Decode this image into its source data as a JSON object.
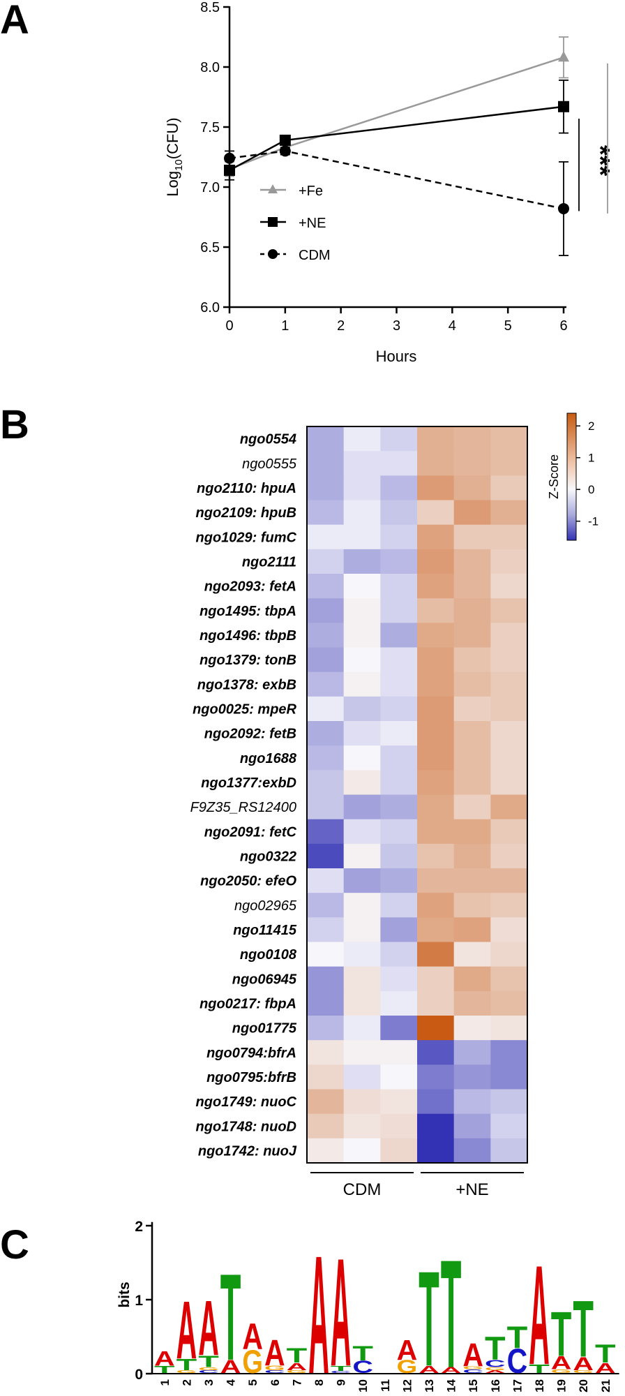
{
  "panels": {
    "a": "A",
    "b": "B",
    "c": "C"
  },
  "chart_data": [
    {
      "type": "line",
      "panel": "A",
      "xlabel": "Hours",
      "ylabel_main": "Log",
      "ylabel_sub": "10",
      "ylabel_tail": "(CFU)",
      "xlim": [
        0,
        6
      ],
      "ylim": [
        6.0,
        8.5
      ],
      "xticks": [
        "0",
        "1",
        "2",
        "3",
        "4",
        "5",
        "6"
      ],
      "yticks": [
        "6.0",
        "6.5",
        "7.0",
        "7.5",
        "8.0",
        "8.5"
      ],
      "legend_position": "inside-lower-left",
      "series": [
        {
          "name": "+Fe",
          "color": "#999999",
          "marker": "triangle",
          "dash": "solid",
          "x": [
            0,
            1,
            6
          ],
          "y": [
            7.15,
            7.33,
            8.08
          ],
          "err": [
            0.06,
            0.04,
            0.17
          ]
        },
        {
          "name": "+NE",
          "color": "#000000",
          "marker": "square",
          "dash": "solid",
          "x": [
            0,
            1,
            6
          ],
          "y": [
            7.14,
            7.39,
            7.67
          ],
          "err": [
            0.08,
            0.03,
            0.22
          ]
        },
        {
          "name": "CDM",
          "color": "#000000",
          "marker": "circle",
          "dash": "dashed",
          "x": [
            0,
            1,
            6
          ],
          "y": [
            7.24,
            7.3,
            6.82
          ],
          "err": [
            0.06,
            0.03,
            0.39
          ]
        }
      ],
      "annotations": [
        {
          "text": "***",
          "color": "#000000",
          "from": "+NE",
          "to": "CDM"
        },
        {
          "text": "****",
          "color": "#999999",
          "from": "+Fe",
          "to": "CDM"
        }
      ]
    },
    {
      "type": "heatmap",
      "panel": "B",
      "colorbar_label": "Z-Score",
      "colorbar_ticks": [
        "2",
        "1",
        "0",
        "-1"
      ],
      "colorbar_range": [
        -1.6,
        2.4
      ],
      "groups": [
        {
          "label": "CDM",
          "columns": 3
        },
        {
          "label": "+NE",
          "columns": 3
        }
      ],
      "rows": [
        {
          "gene": "ngo0554",
          "bold": true,
          "values": [
            -0.6,
            -0.1,
            -0.3,
            1.1,
            1.0,
            0.9
          ]
        },
        {
          "gene": "ngo0555",
          "bold": false,
          "values": [
            -0.6,
            -0.2,
            -0.2,
            1.1,
            1.0,
            0.9
          ]
        },
        {
          "gene": "ngo2110: hpuA",
          "bold": true,
          "values": [
            -0.6,
            -0.2,
            -0.5,
            1.4,
            1.1,
            0.7
          ]
        },
        {
          "gene": "ngo2109: hpuB",
          "bold": true,
          "values": [
            -0.5,
            -0.1,
            -0.4,
            0.6,
            1.4,
            1.1
          ]
        },
        {
          "gene": "ngo1029: fumC",
          "bold": true,
          "values": [
            -0.1,
            -0.1,
            -0.3,
            1.3,
            0.7,
            0.7
          ]
        },
        {
          "gene": "ngo2111",
          "bold": true,
          "values": [
            -0.3,
            -0.6,
            -0.5,
            1.4,
            1.0,
            0.6
          ]
        },
        {
          "gene": "ngo2093: fetA",
          "bold": true,
          "values": [
            -0.5,
            0.0,
            -0.3,
            1.3,
            1.0,
            0.5
          ]
        },
        {
          "gene": "ngo1495: tbpA",
          "bold": true,
          "values": [
            -0.7,
            0.1,
            -0.3,
            0.9,
            1.1,
            0.8
          ]
        },
        {
          "gene": "ngo1496: tbpB",
          "bold": true,
          "values": [
            -0.6,
            0.1,
            -0.6,
            1.2,
            1.1,
            0.6
          ]
        },
        {
          "gene": "ngo1379: tonB",
          "bold": true,
          "values": [
            -0.7,
            0.0,
            -0.2,
            1.3,
            0.8,
            0.6
          ]
        },
        {
          "gene": "ngo1378: exbB",
          "bold": true,
          "values": [
            -0.5,
            0.1,
            -0.2,
            1.3,
            0.9,
            0.7
          ]
        },
        {
          "gene": "ngo0025: mpeR",
          "bold": true,
          "values": [
            -0.1,
            -0.4,
            -0.3,
            1.4,
            0.6,
            0.7
          ]
        },
        {
          "gene": "ngo2092: fetB",
          "bold": true,
          "values": [
            -0.6,
            -0.2,
            -0.1,
            1.4,
            0.9,
            0.5
          ]
        },
        {
          "gene": "ngo1688",
          "bold": true,
          "values": [
            -0.5,
            0.0,
            -0.3,
            1.4,
            0.9,
            0.5
          ]
        },
        {
          "gene": "ngo1377:exbD",
          "bold": true,
          "values": [
            -0.4,
            0.2,
            -0.3,
            1.3,
            0.9,
            0.5
          ]
        },
        {
          "gene": "F9Z35_RS12400",
          "bold": false,
          "values": [
            -0.4,
            -0.7,
            -0.6,
            1.2,
            0.6,
            1.2
          ]
        },
        {
          "gene": "ngo2091: fetC",
          "bold": true,
          "values": [
            -1.2,
            -0.2,
            -0.3,
            1.2,
            1.2,
            0.7
          ]
        },
        {
          "gene": "ngo0322",
          "bold": true,
          "values": [
            -1.4,
            0.1,
            -0.4,
            0.8,
            1.1,
            0.6
          ]
        },
        {
          "gene": "ngo2050: efeO",
          "bold": true,
          "values": [
            -0.2,
            -0.7,
            -0.6,
            1.0,
            1.0,
            1.0
          ]
        },
        {
          "gene": "ngo02965",
          "bold": false,
          "values": [
            -0.5,
            0.1,
            -0.3,
            1.3,
            0.8,
            0.7
          ]
        },
        {
          "gene": "ngo11415",
          "bold": true,
          "values": [
            -0.3,
            0.1,
            -0.7,
            1.2,
            1.3,
            0.4
          ]
        },
        {
          "gene": "ngo0108",
          "bold": true,
          "values": [
            0.0,
            -0.1,
            -0.3,
            1.9,
            0.3,
            0.5
          ]
        },
        {
          "gene": "ngo06945",
          "bold": true,
          "values": [
            -0.8,
            0.3,
            -0.2,
            0.6,
            1.2,
            0.8
          ]
        },
        {
          "gene": "ngo0217: fbpA",
          "bold": true,
          "values": [
            -0.8,
            0.3,
            -0.1,
            0.6,
            1.0,
            0.9
          ]
        },
        {
          "gene": "ngo01775",
          "bold": true,
          "values": [
            -0.5,
            -0.1,
            -1.0,
            2.4,
            0.2,
            0.3
          ]
        },
        {
          "gene": "ngo0794:bfrA",
          "bold": true,
          "values": [
            0.3,
            0.1,
            0.1,
            -1.3,
            -0.6,
            -0.9
          ]
        },
        {
          "gene": "ngo0795:bfrB",
          "bold": true,
          "values": [
            0.5,
            -0.2,
            0.0,
            -1.0,
            -0.8,
            -0.9
          ]
        },
        {
          "gene": "ngo1749: nuoC",
          "bold": true,
          "values": [
            1.0,
            0.4,
            0.3,
            -1.1,
            -0.5,
            -0.4
          ]
        },
        {
          "gene": "ngo1748: nuoD",
          "bold": true,
          "values": [
            0.7,
            0.3,
            0.4,
            -1.6,
            -0.7,
            -0.3
          ]
        },
        {
          "gene": "ngo1742: nuoJ",
          "bold": true,
          "values": [
            0.2,
            0.0,
            0.5,
            -1.6,
            -0.9,
            -0.4
          ]
        }
      ]
    },
    {
      "type": "sequence-logo",
      "panel": "C",
      "ylabel": "bits",
      "ylim": [
        0,
        2
      ],
      "yticks": [
        "0",
        "1",
        "2"
      ],
      "base_colors": {
        "A": "#dd0000",
        "T": "#119911",
        "G": "#f0a000",
        "C": "#1515c8"
      },
      "positions": [
        {
          "pos": "1",
          "stack": [
            [
              "T",
              0.1
            ],
            [
              "A",
              0.2
            ]
          ]
        },
        {
          "pos": "2",
          "stack": [
            [
              "G",
              0.04
            ],
            [
              "T",
              0.16
            ],
            [
              "A",
              0.8
            ]
          ]
        },
        {
          "pos": "3",
          "stack": [
            [
              "C",
              0.04
            ],
            [
              "G",
              0.04
            ],
            [
              "T",
              0.16
            ],
            [
              "A",
              0.76
            ]
          ]
        },
        {
          "pos": "4",
          "stack": [
            [
              "A",
              0.18
            ],
            [
              "T",
              1.2
            ]
          ]
        },
        {
          "pos": "5",
          "stack": [
            [
              "G",
              0.32
            ],
            [
              "A",
              0.36
            ]
          ]
        },
        {
          "pos": "6",
          "stack": [
            [
              "C",
              0.04
            ],
            [
              "G",
              0.06
            ],
            [
              "A",
              0.36
            ]
          ]
        },
        {
          "pos": "7",
          "stack": [
            [
              "G",
              0.04
            ],
            [
              "A",
              0.1
            ],
            [
              "T",
              0.2
            ]
          ]
        },
        {
          "pos": "8",
          "stack": [
            [
              "A",
              1.64
            ]
          ]
        },
        {
          "pos": "9",
          "stack": [
            [
              "C",
              0.03
            ],
            [
              "T",
              0.07
            ],
            [
              "A",
              1.5
            ]
          ]
        },
        {
          "pos": "10",
          "stack": [
            [
              "C",
              0.17
            ],
            [
              "T",
              0.2
            ]
          ]
        },
        {
          "pos": "11",
          "stack": []
        },
        {
          "pos": "12",
          "stack": [
            [
              "G",
              0.18
            ],
            [
              "A",
              0.28
            ]
          ]
        },
        {
          "pos": "13",
          "stack": [
            [
              "A",
              0.1
            ],
            [
              "T",
              1.32
            ]
          ]
        },
        {
          "pos": "14",
          "stack": [
            [
              "A",
              0.08
            ],
            [
              "T",
              1.5
            ]
          ]
        },
        {
          "pos": "15",
          "stack": [
            [
              "C",
              0.05
            ],
            [
              "G",
              0.04
            ],
            [
              "A",
              0.32
            ]
          ]
        },
        {
          "pos": "16",
          "stack": [
            [
              "A",
              0.04
            ],
            [
              "G",
              0.04
            ],
            [
              "C",
              0.1
            ],
            [
              "T",
              0.32
            ]
          ]
        },
        {
          "pos": "17",
          "stack": [
            [
              "C",
              0.34
            ],
            [
              "T",
              0.3
            ]
          ]
        },
        {
          "pos": "18",
          "stack": [
            [
              "T",
              0.12
            ],
            [
              "A",
              1.38
            ]
          ]
        },
        {
          "pos": "19",
          "stack": [
            [
              "G",
              0.05
            ],
            [
              "A",
              0.18
            ],
            [
              "T",
              0.62
            ]
          ]
        },
        {
          "pos": "20",
          "stack": [
            [
              "G",
              0.04
            ],
            [
              "A",
              0.18
            ],
            [
              "T",
              0.78
            ]
          ]
        },
        {
          "pos": "21",
          "stack": [
            [
              "A",
              0.14
            ],
            [
              "T",
              0.25
            ]
          ]
        }
      ]
    }
  ]
}
